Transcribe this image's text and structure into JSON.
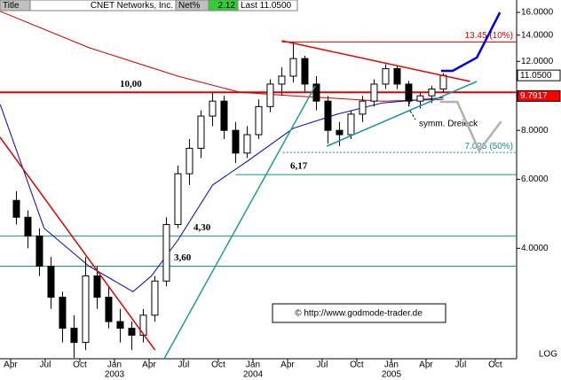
{
  "chart_data": {
    "type": "candlestick",
    "header": [
      "Title",
      "CNET Networks, Inc.",
      "Net%",
      "2.12",
      "Last 11.0500"
    ],
    "log_scale": true,
    "ylim": [
      2.09,
      16.17
    ],
    "yticks": [
      {
        "value": 16,
        "label": "16.0000"
      },
      {
        "value": 14,
        "label": "14.0000"
      },
      {
        "value": 12,
        "label": "12.0000"
      },
      {
        "value": 8,
        "label": "8.0000"
      },
      {
        "value": 6,
        "label": "6.0000"
      },
      {
        "value": 4,
        "label": "4.0000"
      }
    ],
    "xlim": [
      2.08,
      46.85
    ],
    "xticks": [
      {
        "value": 3,
        "label": "Apr"
      },
      {
        "value": 6,
        "label": "Jul"
      },
      {
        "value": 9,
        "label": "Oct"
      },
      {
        "value": 12,
        "label": "Jan"
      },
      {
        "value": 15,
        "label": "Apr"
      },
      {
        "value": 18,
        "label": "Jul"
      },
      {
        "value": 21,
        "label": "Oct"
      },
      {
        "value": 24,
        "label": "Jan"
      },
      {
        "value": 27,
        "label": "Apr"
      },
      {
        "value": 30,
        "label": "Jul"
      },
      {
        "value": 33,
        "label": "Oct"
      },
      {
        "value": 36,
        "label": "Jan"
      },
      {
        "value": 39,
        "label": "Apr"
      },
      {
        "value": 42,
        "label": "Jul"
      },
      {
        "value": 45,
        "label": "Oct"
      }
    ],
    "xtick_years": [
      {
        "value": 12,
        "label": "2003"
      },
      {
        "value": 24,
        "label": "2004"
      },
      {
        "value": 36,
        "label": "2005"
      }
    ],
    "x": [
      3.5,
      4.5,
      5.5,
      6.5,
      7.5,
      8.5,
      9.5,
      10.5,
      11.5,
      12.5,
      13.5,
      14.5,
      15.5,
      16.5,
      17.5,
      18.5,
      19.5,
      20.5,
      21.5,
      22.5,
      23.5,
      24.5,
      25.5,
      26.5,
      27.5,
      28.5,
      29.5,
      30.5,
      31.5,
      32.5,
      33.5,
      34.5,
      35.5,
      36.5,
      37.5,
      38.5,
      39.5,
      40.5
    ],
    "open": [
      5.3,
      4.8,
      4.3,
      3.6,
      3.0,
      2.5,
      2.3,
      3.4,
      3.0,
      2.6,
      2.5,
      2.4,
      2.7,
      3.3,
      4.6,
      6.2,
      7.2,
      8.7,
      9.5,
      8.0,
      7.0,
      7.8,
      9.2,
      10.5,
      11.0,
      12.2,
      10.5,
      9.5,
      8.0,
      7.8,
      8.8,
      9.5,
      10.5,
      11.5,
      10.5,
      9.5,
      9.8,
      10.2
    ],
    "high": [
      5.6,
      5.0,
      4.5,
      3.8,
      3.1,
      2.7,
      3.8,
      3.6,
      3.2,
      2.8,
      2.6,
      2.8,
      3.4,
      4.8,
      6.5,
      7.6,
      9.0,
      10.0,
      9.8,
      8.4,
      8.2,
      9.6,
      10.8,
      11.6,
      13.45,
      12.4,
      11.0,
      9.8,
      8.4,
      9.0,
      9.8,
      10.8,
      11.8,
      11.7,
      10.7,
      10.0,
      10.4,
      11.2
    ],
    "low": [
      4.6,
      4.0,
      3.4,
      2.8,
      2.3,
      2.1,
      2.2,
      2.8,
      2.5,
      2.3,
      2.2,
      2.3,
      2.6,
      3.2,
      4.5,
      5.8,
      6.8,
      8.2,
      7.6,
      6.6,
      6.8,
      7.6,
      8.9,
      9.8,
      10.6,
      10.0,
      9.0,
      7.4,
      7.3,
      7.6,
      8.4,
      9.2,
      10.2,
      10.2,
      9.2,
      9.1,
      9.4,
      10.0
    ],
    "close": [
      4.8,
      4.3,
      3.6,
      3.0,
      2.5,
      2.3,
      3.4,
      3.0,
      2.6,
      2.5,
      2.4,
      2.7,
      3.3,
      4.6,
      6.2,
      7.2,
      8.7,
      9.5,
      8.0,
      7.0,
      7.8,
      9.2,
      10.5,
      11.0,
      12.2,
      10.5,
      9.5,
      8.0,
      7.8,
      8.8,
      9.5,
      10.5,
      11.5,
      10.5,
      9.5,
      9.8,
      10.2,
      11.05
    ],
    "moving_averages": [
      {
        "color": "#d00000",
        "x": [
          2.1,
          9.8,
          17.5,
          22.9,
          27.5,
          35.2,
          40.5
        ],
        "values": [
          16.1,
          13,
          11,
          10,
          9.8,
          9.5,
          9.6
        ]
      },
      {
        "color": "#0000c0",
        "x": [
          2.1,
          5.9,
          9.8,
          13.6,
          15.2,
          17.5,
          20.5,
          23.6,
          27.5,
          31.3,
          35.2,
          40.5
        ],
        "values": [
          9.3,
          4.5,
          3.6,
          3.1,
          3.4,
          4.2,
          5.8,
          6.7,
          8.1,
          8.8,
          9.4,
          9.7
        ]
      }
    ],
    "levels": [
      {
        "value": 10,
        "label": "10,00",
        "color": "#e00000"
      },
      {
        "value": 6.17,
        "label": "6,17",
        "color": "#1a8f8f",
        "x_from": 22.5
      },
      {
        "value": 4.3,
        "label": "4,30",
        "color": "#1a8f8f"
      },
      {
        "value": 3.6,
        "label": "3,60",
        "color": "#1a8f8f"
      }
    ],
    "targets": [
      {
        "value": 13.45,
        "label": "13.45 (10%)",
        "color": "#e00000",
        "x_from": 26.5
      },
      {
        "value": 7.025,
        "label": "7.025 (50%)",
        "color": "#1a8f8f",
        "x_from": 26.6,
        "dashed": true
      }
    ],
    "trendlines": [
      {
        "color": "#e00000",
        "x": [
          2.08,
          15.5
        ],
        "values": [
          7.68,
          2.2
        ]
      },
      {
        "color": "#1a9f8f",
        "x": [
          16.3,
          29.4
        ],
        "values": [
          2.09,
          10.4
        ]
      },
      {
        "color": "#e00000",
        "x": [
          26.5,
          42.8
        ],
        "values": [
          13.55,
          10.67
        ]
      },
      {
        "color": "#1a8f8f",
        "x": [
          30.4,
          43.4
        ],
        "values": [
          7.29,
          10.67
        ]
      },
      {
        "color": "#0000e0",
        "x": [
          40.3,
          41.3,
          43.4,
          45.4
        ],
        "values": [
          11.35,
          11.35,
          12.27,
          16
        ]
      },
      {
        "color": "#b0b0b0",
        "x": [
          40.2,
          41.7,
          43.6,
          45.5
        ],
        "values": [
          9.46,
          9.46,
          7.1,
          8.43
        ]
      }
    ],
    "last_label": {
      "value": 11.05,
      "label": "11.0500"
    },
    "ma_label": {
      "value": 9.7917,
      "label": "9.7917"
    },
    "annotations": [
      "symm. Dreieck",
      "© http://www.godmode-trader.de",
      "LOG"
    ]
  }
}
